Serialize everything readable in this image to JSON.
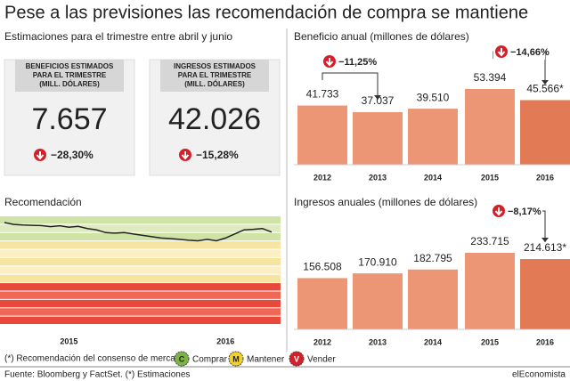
{
  "title": "Pese a las previsiones las recomendación de compra se mantiene",
  "estimates": {
    "heading": "Estimaciones para el trimestre entre abril y junio",
    "cards": [
      {
        "label": "BENEFICIOS ESTIMADOS PARA EL TRIMESTRE (MILL. DÓLARES)",
        "value": "7.657",
        "change": "−28,30%"
      },
      {
        "label": "INGRESOS ESTIMADOS PARA EL TRIMESTRE (MILL. DÓLARES)",
        "value": "42.026",
        "change": "−15,28%"
      }
    ]
  },
  "chart_data": [
    {
      "type": "bar",
      "title": "Beneficio anual (millones de dólares)",
      "categories": [
        "2012",
        "2013",
        "2014",
        "2015",
        "2016"
      ],
      "values": [
        41733,
        37037,
        39510,
        53394,
        45566
      ],
      "value_labels": [
        "41.733",
        "37.037",
        "39.510",
        "53.394",
        "45.566*"
      ],
      "colors": [
        "#ec9676",
        "#ec9676",
        "#ec9676",
        "#ec9676",
        "#e17a55"
      ],
      "annotations": [
        "−11,25%",
        "−14,66%"
      ]
    },
    {
      "type": "bar",
      "title": "Ingresos anuales (millones de dólares)",
      "categories": [
        "2012",
        "2013",
        "2014",
        "2015",
        "2016"
      ],
      "values": [
        156508,
        170910,
        182795,
        233715,
        214613
      ],
      "value_labels": [
        "156.508",
        "170.910",
        "182.795",
        "233.715",
        "214.613*"
      ],
      "colors": [
        "#ec9676",
        "#ec9676",
        "#ec9676",
        "#ec9676",
        "#e17a55"
      ],
      "annotations": [
        "−8,17%"
      ]
    },
    {
      "type": "line",
      "title": "Recomendación",
      "categories": [
        null,
        null,
        null,
        null,
        null,
        null,
        null,
        "2015",
        null,
        null,
        null,
        null,
        null,
        null,
        null,
        null,
        null,
        null,
        null,
        null,
        null,
        null,
        null,
        null,
        "2016",
        null,
        null,
        null,
        null,
        null
      ],
      "values": [
        4.77,
        4.7,
        4.68,
        4.67,
        4.66,
        4.62,
        4.65,
        4.6,
        4.63,
        4.55,
        4.5,
        4.4,
        4.38,
        4.4,
        4.35,
        4.3,
        4.25,
        4.2,
        4.18,
        4.15,
        4.12,
        4.1,
        4.15,
        4.1,
        4.2,
        4.35,
        4.5,
        4.52,
        4.55,
        4.42
      ],
      "color": "#222222",
      "ylim": [
        1,
        5
      ],
      "legend": {
        "title": "(*) Recomendación del consenso de mercado:",
        "items": [
          {
            "letter": "C",
            "name": "Comprar",
            "color": "#7db544"
          },
          {
            "letter": "M",
            "name": "Mantener",
            "color": "#f2d02e"
          },
          {
            "letter": "V",
            "name": "Vender",
            "color": "#d4202a"
          }
        ]
      }
    }
  ],
  "footer": {
    "source": "Fuente: Bloomberg y FactSet. (*) Estimaciones",
    "brand": "elEconomista"
  }
}
